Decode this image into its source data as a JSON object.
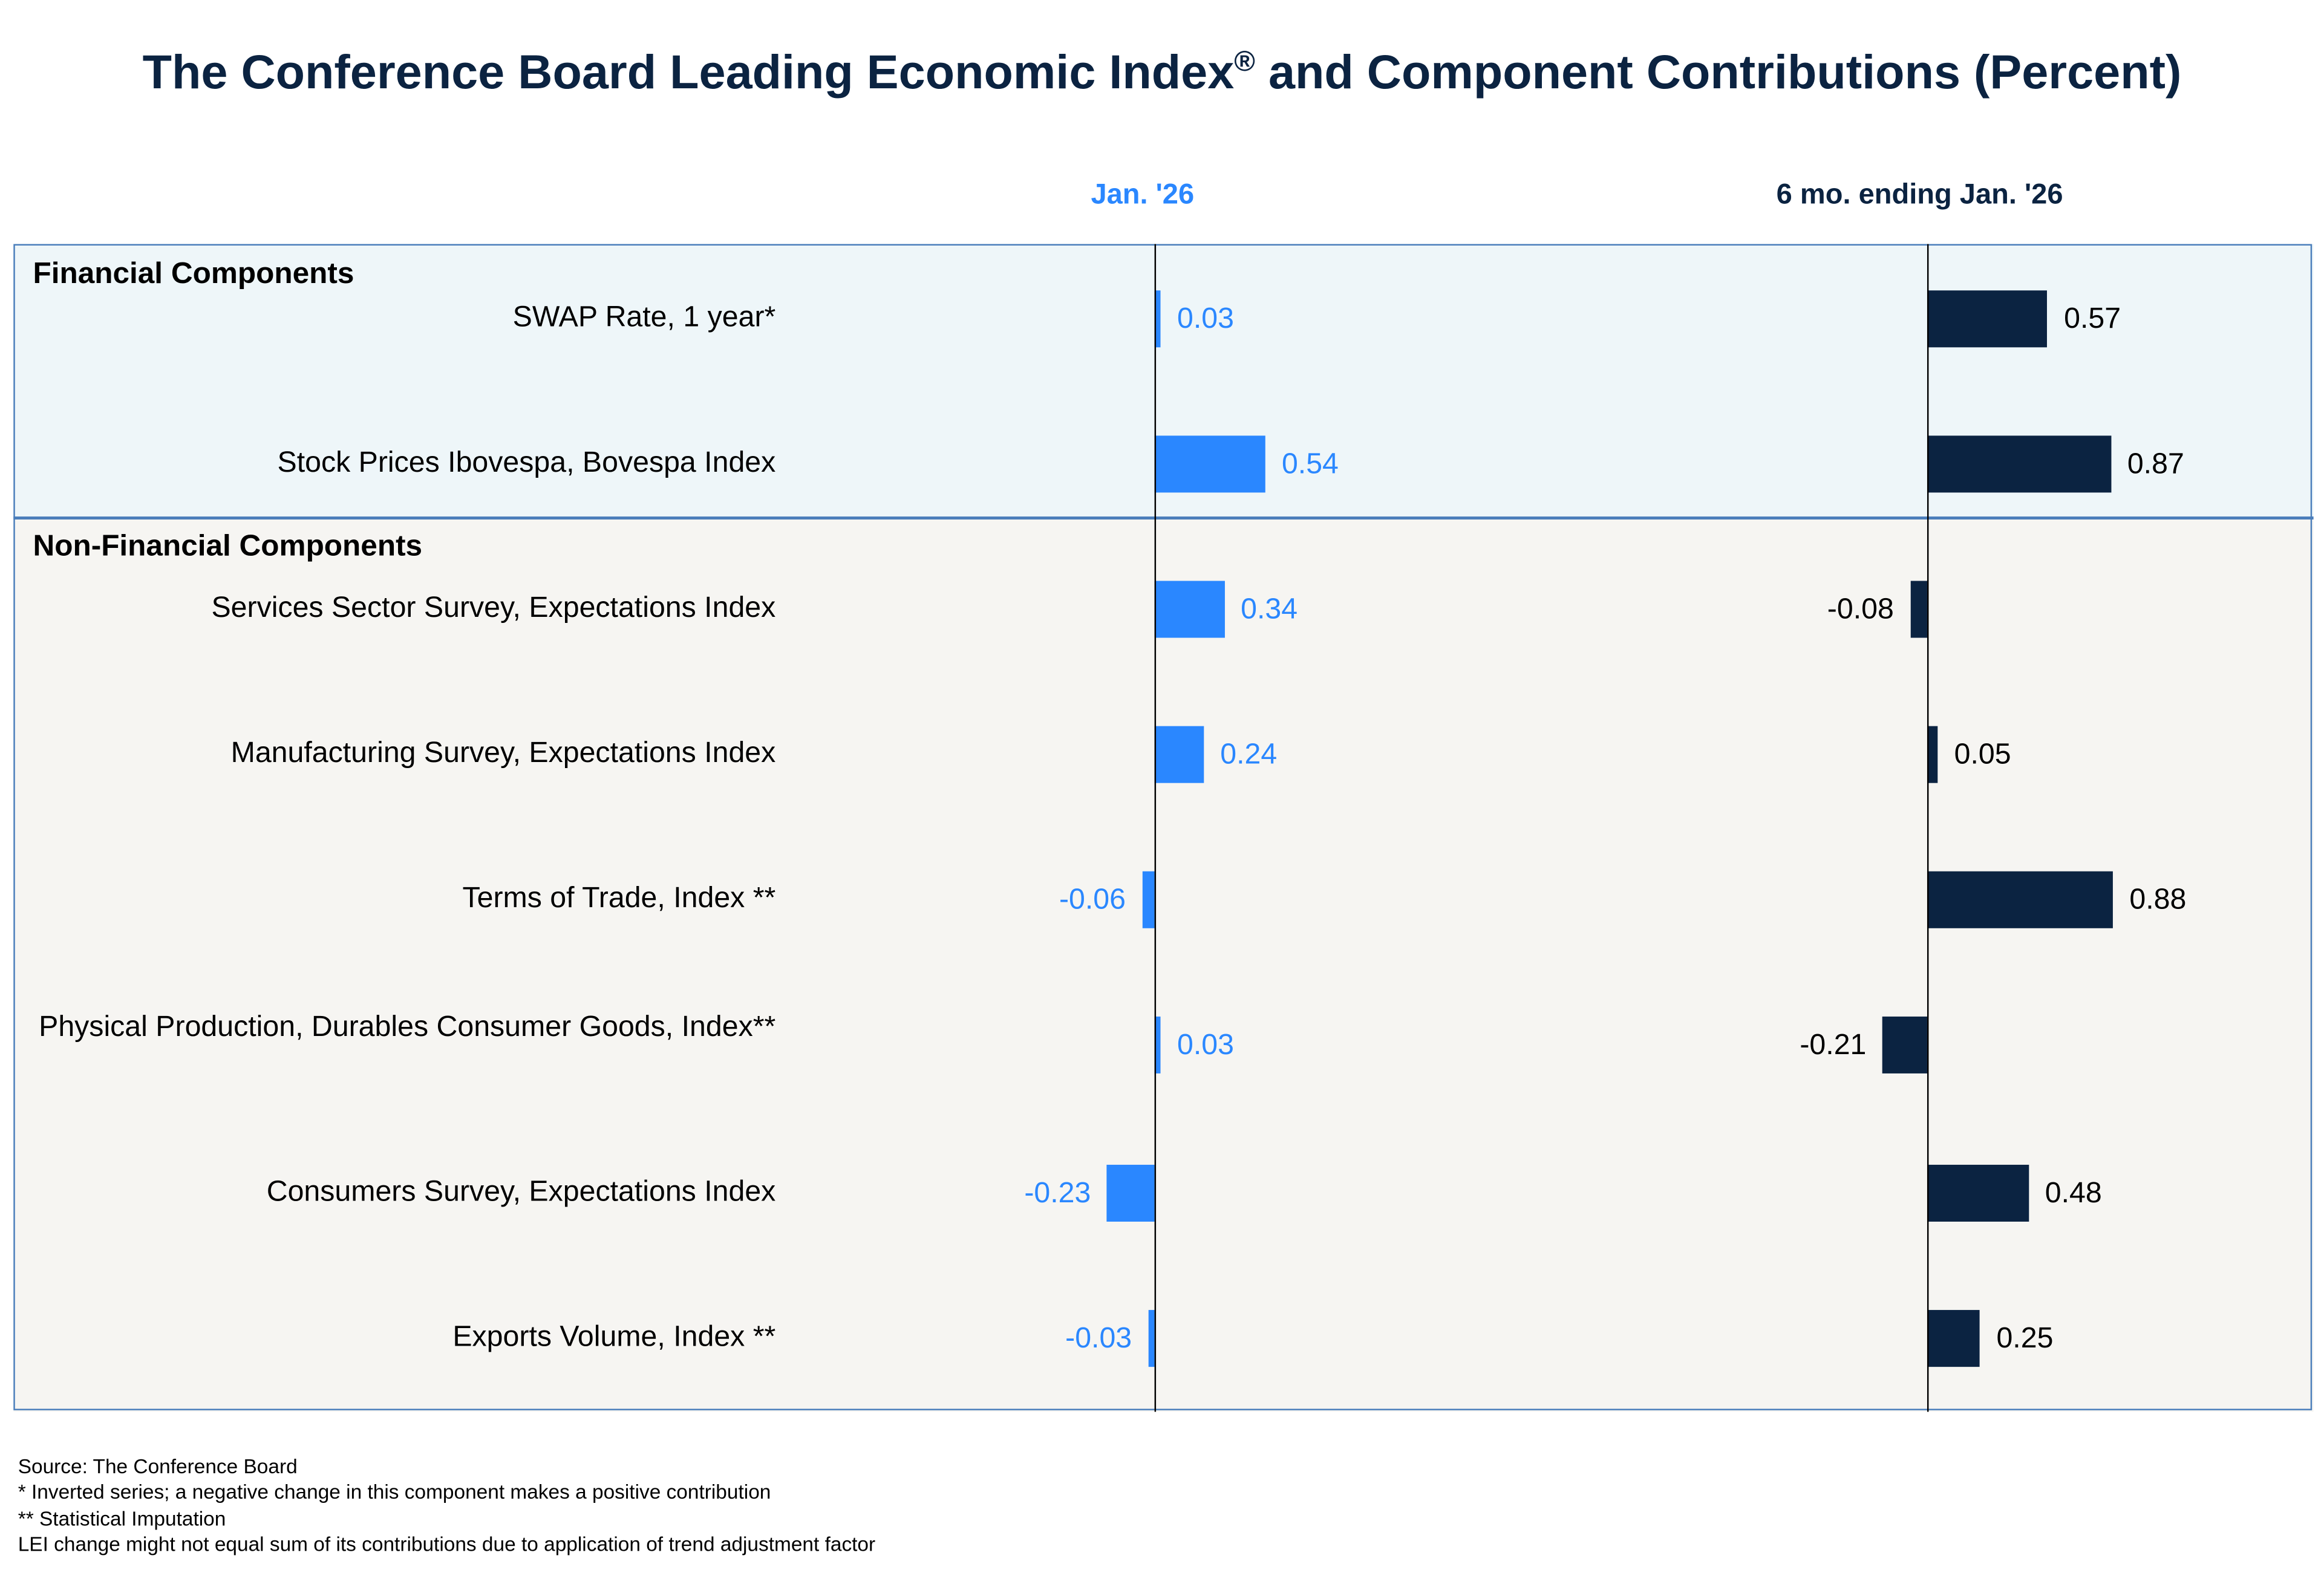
{
  "chart_data": {
    "type": "bar",
    "orientation": "horizontal",
    "title": "The Conference Board Leading Economic Index",
    "title_mark": "®",
    "title_suffix": " and Component Contributions (Percent)",
    "columns": [
      {
        "name": "Jan. '26",
        "color": "#2a87ff"
      },
      {
        "name": "6 mo. ending Jan. '26",
        "color": "#0b2341"
      }
    ],
    "sections": [
      {
        "name": "Financial Components",
        "rows": [
          0,
          1
        ]
      },
      {
        "name": "Non-Financial Components",
        "rows": [
          2,
          3,
          4,
          5,
          6,
          7
        ]
      }
    ],
    "categories": [
      "SWAP Rate, 1 year*",
      "Stock Prices Ibovespa, Bovespa Index",
      "Services Sector Survey, Expectations Index",
      "Manufacturing Survey, Expectations Index",
      "Terms of Trade, Index **",
      "Physical Production, Durables Consumer Goods, Index**",
      "Consumers Survey, Expectations Index",
      "Exports Volume, Index **"
    ],
    "series": [
      {
        "name": "Jan. '26",
        "values": [
          0.03,
          0.54,
          0.34,
          0.24,
          -0.06,
          0.03,
          -0.23,
          -0.03
        ],
        "labels": [
          "0.03",
          "0.54",
          "0.34",
          "0.24",
          "-0.06",
          "0.03",
          "-0.23",
          "-0.03"
        ]
      },
      {
        "name": "6 mo. ending Jan. '26",
        "values": [
          0.57,
          0.87,
          -0.08,
          0.05,
          0.88,
          -0.21,
          0.48,
          0.25
        ],
        "labels": [
          "0.57",
          "0.87",
          "-0.08",
          "0.05",
          "0.88",
          "-0.21",
          "0.48",
          "0.25"
        ]
      }
    ]
  },
  "footer": [
    "Source: The Conference Board",
    "*  Inverted series; a negative change in this component makes a positive contribution",
    "** Statistical Imputation",
    "LEI change might not equal sum of its contributions due to application of trend adjustment factor"
  ]
}
